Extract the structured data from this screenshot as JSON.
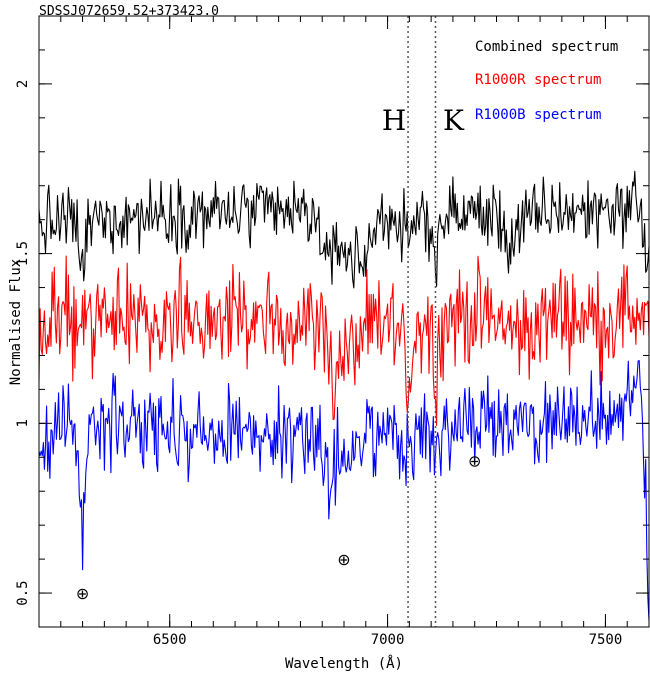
{
  "chart_data": {
    "type": "line",
    "title": "SDSSJ072659.52+373423.0",
    "xlabel": "Wavelength (Å)",
    "ylabel": "Normalised Flux",
    "xlim": [
      6200,
      7600
    ],
    "ylim": [
      0.4,
      2.2
    ],
    "xticks": [
      6500,
      7000,
      7500
    ],
    "xtick_labels": [
      "6500",
      "7000",
      "7500"
    ],
    "yticks": [
      0.5,
      1.0,
      1.5,
      2.0
    ],
    "ytick_labels": [
      "0.5",
      "1",
      "1.5",
      "2"
    ],
    "x_minor_step": 50,
    "y_minor_step": 0.1,
    "grid": false,
    "legend": "top-right",
    "line_features": [
      {
        "label": "H",
        "x": 7047
      },
      {
        "label": "K",
        "x": 7110
      }
    ],
    "telluric_markers": [
      {
        "symbol": "⊕",
        "x": 6300,
        "y": 0.5
      },
      {
        "symbol": "⊕",
        "x": 6900,
        "y": 0.6
      },
      {
        "symbol": "⊕",
        "x": 7200,
        "y": 0.89
      }
    ],
    "series": [
      {
        "name": "Combined spectrum",
        "color": "#000000",
        "base": 1.6,
        "noise": 0.05,
        "x": [
          6200,
          6270,
          6290,
          6300,
          6310,
          6330,
          6400,
          6500,
          6600,
          6700,
          6780,
          6820,
          6850,
          6862,
          6870,
          6878,
          6890,
          6905,
          6940,
          6980,
          7000,
          7020,
          7040,
          7047,
          7055,
          7070,
          7090,
          7105,
          7110,
          7116,
          7130,
          7160,
          7200,
          7260,
          7280,
          7300,
          7360,
          7400,
          7450,
          7500,
          7540,
          7560,
          7580,
          7592,
          7600
        ],
        "y": [
          1.58,
          1.6,
          1.57,
          1.42,
          1.57,
          1.6,
          1.61,
          1.62,
          1.62,
          1.62,
          1.62,
          1.61,
          1.57,
          1.47,
          1.43,
          1.5,
          1.55,
          1.5,
          1.47,
          1.6,
          1.62,
          1.6,
          1.56,
          1.48,
          1.56,
          1.62,
          1.6,
          1.55,
          1.5,
          1.55,
          1.6,
          1.62,
          1.62,
          1.6,
          1.52,
          1.58,
          1.62,
          1.63,
          1.62,
          1.64,
          1.63,
          1.65,
          1.66,
          1.5,
          1.45
        ]
      },
      {
        "name": "R1000R spectrum",
        "color": "#ff0000",
        "base": 1.3,
        "noise": 0.07,
        "x": [
          6200,
          6250,
          6300,
          6400,
          6500,
          6600,
          6700,
          6800,
          6850,
          6862,
          6868,
          6872,
          6880,
          6890,
          6910,
          6940,
          6980,
          7000,
          7020,
          7040,
          7047,
          7055,
          7070,
          7090,
          7105,
          7110,
          7118,
          7140,
          7200,
          7260,
          7300,
          7400,
          7500,
          7550,
          7600
        ],
        "y": [
          1.25,
          1.3,
          1.3,
          1.3,
          1.32,
          1.31,
          1.3,
          1.3,
          1.3,
          1.2,
          1.3,
          1.15,
          1.1,
          1.2,
          1.2,
          1.25,
          1.28,
          1.3,
          1.28,
          1.2,
          1.1,
          1.2,
          1.3,
          1.3,
          1.25,
          1.15,
          1.25,
          1.32,
          1.32,
          1.3,
          1.26,
          1.33,
          1.3,
          1.33,
          1.33
        ]
      },
      {
        "name": "R1000B spectrum",
        "color": "#0000ff",
        "base": 0.98,
        "noise": 0.06,
        "x": [
          6200,
          6260,
          6285,
          6293,
          6300,
          6306,
          6320,
          6400,
          6500,
          6600,
          6700,
          6800,
          6840,
          6860,
          6868,
          6874,
          6880,
          6900,
          6930,
          6960,
          7000,
          7030,
          7045,
          7050,
          7060,
          7080,
          7100,
          7110,
          7118,
          7140,
          7200,
          7250,
          7300,
          7350,
          7400,
          7450,
          7500,
          7540,
          7565,
          7575,
          7585,
          7595,
          7600
        ],
        "y": [
          0.95,
          1.0,
          1.0,
          0.82,
          0.6,
          0.85,
          1.0,
          1.0,
          0.97,
          0.97,
          0.98,
          0.97,
          0.95,
          0.85,
          0.7,
          0.8,
          0.9,
          0.92,
          0.93,
          0.96,
          1.0,
          0.95,
          0.9,
          0.86,
          0.95,
          1.0,
          0.96,
          0.92,
          0.95,
          1.0,
          1.0,
          1.03,
          1.0,
          0.99,
          1.0,
          1.0,
          1.02,
          1.04,
          1.1,
          1.18,
          1.0,
          0.7,
          0.42
        ]
      }
    ]
  }
}
